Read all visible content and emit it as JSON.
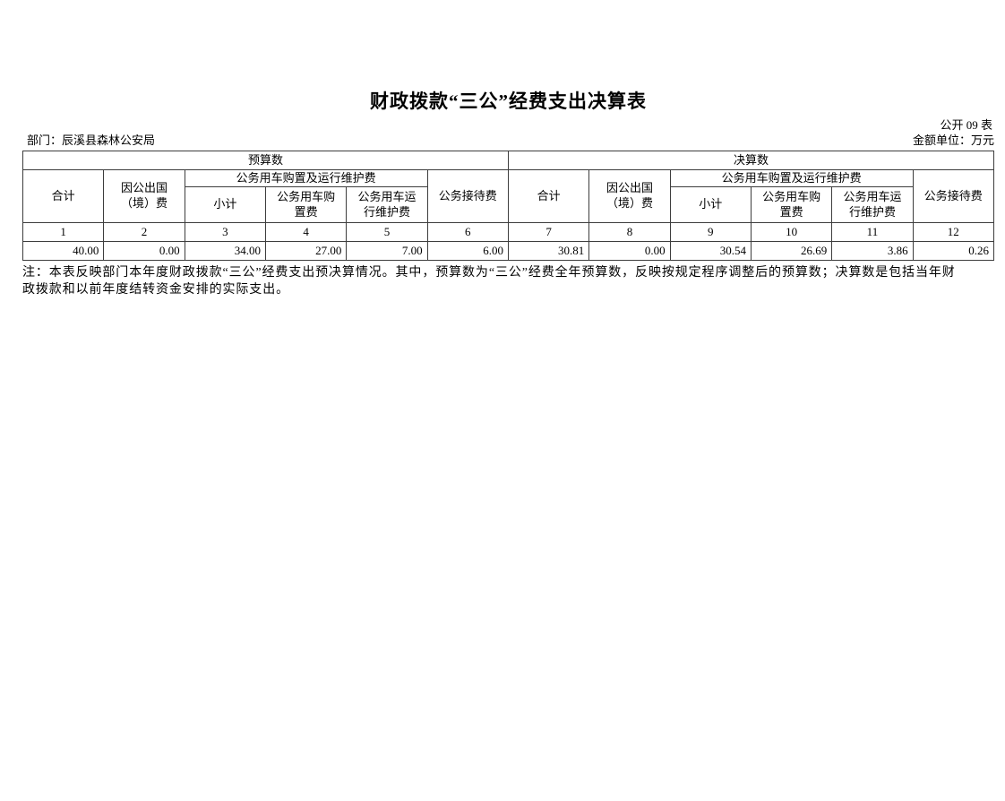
{
  "document": {
    "title": "财政拨款“三公”经费支出决算表",
    "form_code": "公开 09 表",
    "department": "部门：辰溪县森林公安局",
    "unit": "金额单位：万元",
    "note_lines": [
      "注：本表反映部门本年度财政拨款“三公”经费支出预决算情况。其中，预算数为“三公”经费全年预算数，反映按规定程序调整后的预算数；决算数是包括当年财",
      "政拨款和以前年度结转资金安排的实际支出。"
    ]
  },
  "table": {
    "sections": [
      {
        "title": "预算数",
        "headers": {
          "total": "合计",
          "abroad": "因公出国（境）费",
          "vehicle_group": "公务用车购置及运行维护费",
          "vehicle_subtotal": "小计",
          "vehicle_purchase": "公务用车购置费",
          "vehicle_maintenance": "公务用车运行维护费",
          "reception": "公务接待费"
        },
        "column_numbers": [
          "1",
          "2",
          "3",
          "4",
          "5",
          "6"
        ],
        "values": [
          "40.00",
          "0.00",
          "34.00",
          "27.00",
          "7.00",
          "6.00"
        ]
      },
      {
        "title": "决算数",
        "headers": {
          "total": "合计",
          "abroad": "因公出国（境）费",
          "vehicle_group": "公务用车购置及运行维护费",
          "vehicle_subtotal": "小计",
          "vehicle_purchase": "公务用车购置费",
          "vehicle_maintenance": "公务用车运行维护费",
          "reception": "公务接待费"
        },
        "column_numbers": [
          "7",
          "8",
          "9",
          "10",
          "11",
          "12"
        ],
        "values": [
          "30.81",
          "0.00",
          "30.54",
          "26.69",
          "3.86",
          "0.26"
        ]
      }
    ]
  }
}
